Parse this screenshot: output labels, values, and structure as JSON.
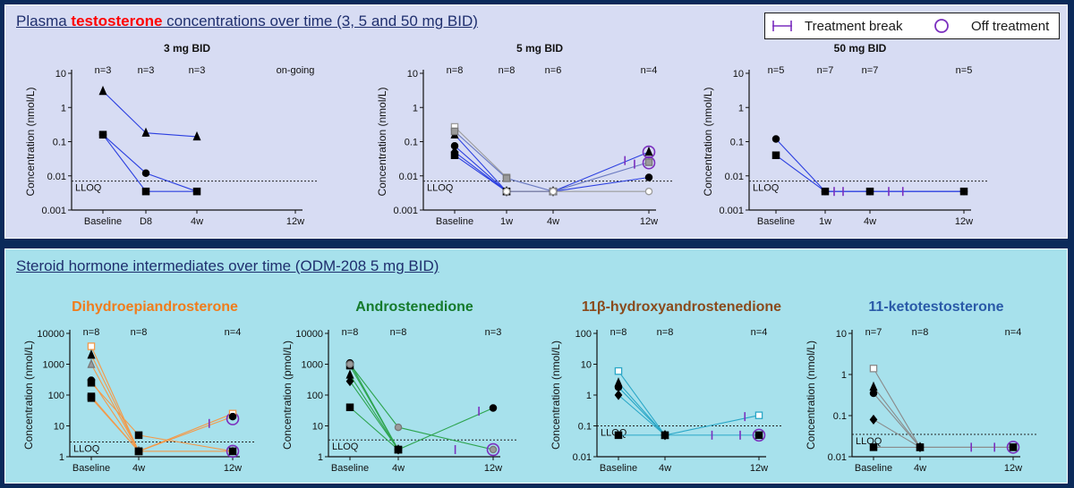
{
  "top_section": {
    "title_before": "Plasma ",
    "title_highlight": "testosterone",
    "title_after": " concentrations over time (3, 5 and 50 mg BID)"
  },
  "legend": {
    "treatment_break": "Treatment break",
    "off_treatment": "Off treatment",
    "break_color": "#7b2fbf",
    "off_color": "#7b2fbf"
  },
  "bottom_section": {
    "title": "Steroid hormone intermediates over time (ODM-208 5 mg BID)"
  },
  "chart_data": [
    {
      "id": "t3",
      "type": "line",
      "yscale": "log",
      "title": "3 mg BID",
      "title_color": "#111111",
      "title_style": "top",
      "ylabel": "Concentration (nmol/L)",
      "yticks": [
        0.001,
        0.01,
        0.1,
        1,
        10
      ],
      "ytick_labels": [
        "0.001",
        "0.01",
        "0.1",
        "1",
        "10"
      ],
      "categories": [
        "Baseline",
        "D8",
        "4w",
        "12w"
      ],
      "n_labels": [
        "n=3",
        "n=3",
        "n=3",
        "on-going"
      ],
      "lloq": 0.007,
      "lloq_label": "LLOQ",
      "series": [
        {
          "marker": "triangle",
          "color": "#2b3fe0",
          "fill": "#000000",
          "values": [
            3,
            0.18,
            0.14,
            null
          ]
        },
        {
          "marker": "circle",
          "color": "#2b3fe0",
          "fill": "#000000",
          "values": [
            0.16,
            0.012,
            null,
            null
          ]
        },
        {
          "marker": "square",
          "color": "#2b3fe0",
          "fill": "#000000",
          "values": [
            0.16,
            0.0035,
            0.0035,
            null
          ]
        }
      ],
      "segments": [
        {
          "from": [
            1,
            0.012
          ],
          "to": [
            2,
            0.0035
          ],
          "color": "#2b3fe0"
        }
      ],
      "breaks": [],
      "off": []
    },
    {
      "id": "t5",
      "type": "line",
      "yscale": "log",
      "title": "5 mg BID",
      "title_color": "#111111",
      "title_style": "top",
      "ylabel": "Concentration (nmol/L)",
      "yticks": [
        0.001,
        0.01,
        0.1,
        1,
        10
      ],
      "ytick_labels": [
        "0.001",
        "0.01",
        "0.1",
        "1",
        "10"
      ],
      "categories": [
        "Baseline",
        "1w",
        "4w",
        "12w"
      ],
      "n_labels": [
        "n=8",
        "n=8",
        "n=6",
        "n=4"
      ],
      "lloq": 0.007,
      "lloq_label": "LLOQ",
      "series": [
        {
          "marker": "square",
          "color": "#9b9b9b",
          "fill": "none",
          "values": [
            0.27,
            0.009,
            null,
            null
          ]
        },
        {
          "marker": "triangle",
          "color": "#2b3fe0",
          "fill": "#000000",
          "values": [
            0.16,
            0.0035,
            0.0035,
            0.05
          ]
        },
        {
          "marker": "circle",
          "color": "#2b3fe0",
          "fill": "#000000",
          "values": [
            0.075,
            0.0035,
            0.0035,
            0.009
          ]
        },
        {
          "marker": "diamond",
          "color": "#2b3fe0",
          "fill": "#000000",
          "values": [
            0.05,
            0.0035,
            0.0035,
            null
          ]
        },
        {
          "marker": "square",
          "color": "#2b3fe0",
          "fill": "#000000",
          "values": [
            0.04,
            0.0035,
            0.0035,
            null
          ]
        },
        {
          "marker": "square",
          "color": "#6a7ac0",
          "fill": "#9b9b9b",
          "values": [
            0.2,
            0.0085,
            0.0035,
            0.025
          ]
        },
        {
          "marker": "circle",
          "color": "#9b9b9b",
          "fill": "none",
          "values": [
            null,
            0.0035,
            0.0035,
            0.0035
          ]
        }
      ],
      "segments": [],
      "breaks": [
        [
          2.75,
          0.028
        ],
        [
          2.85,
          0.022
        ]
      ],
      "off": [
        [
          3,
          0.05
        ],
        [
          3,
          0.024
        ]
      ]
    },
    {
      "id": "t50",
      "type": "line",
      "yscale": "log",
      "title": "50 mg BID",
      "title_color": "#111111",
      "title_style": "top",
      "ylabel": "Concentration (nmol/L)",
      "yticks": [
        0.001,
        0.01,
        0.1,
        1,
        10
      ],
      "ytick_labels": [
        "0.001",
        "0.01",
        "0.1",
        "1",
        "10"
      ],
      "categories": [
        "Baseline",
        "1w",
        "4w",
        "12w"
      ],
      "n_labels": [
        "n=5",
        "n=7",
        "n=7",
        "n=5"
      ],
      "lloq": 0.007,
      "lloq_label": "LLOQ",
      "series": [
        {
          "marker": "circle",
          "color": "#2b3fe0",
          "fill": "#000000",
          "values": [
            0.12,
            0.0035,
            0.0035,
            0.0035
          ]
        },
        {
          "marker": "square",
          "color": "#2b3fe0",
          "fill": "#000000",
          "values": [
            0.04,
            0.0035,
            0.0035,
            0.0035
          ]
        }
      ],
      "segments": [],
      "breaks": [
        [
          1.2,
          0.0035
        ],
        [
          1.4,
          0.0035
        ],
        [
          2.2,
          0.0035
        ],
        [
          2.35,
          0.0035
        ]
      ],
      "off": []
    },
    {
      "id": "dhea",
      "type": "line",
      "yscale": "log",
      "title": "Dihydroepiandrosterone",
      "title_color": "#f07c1c",
      "title_style": "bottom",
      "ylabel": "Concentration (nmol/L)",
      "yticks": [
        1,
        10,
        100,
        1000,
        10000
      ],
      "ytick_labels": [
        "1",
        "10",
        "100",
        "1000",
        "10000"
      ],
      "categories": [
        "Baseline",
        "4w",
        "12w"
      ],
      "n_labels": [
        "n=8",
        "n=8",
        "n=4"
      ],
      "lloq": 3,
      "lloq_label": "LLOQ",
      "series": [
        {
          "marker": "square",
          "color": "#f39a4a",
          "fill": "none",
          "values": [
            3800,
            1.5,
            25
          ]
        },
        {
          "marker": "triangle",
          "color": "#f39a4a",
          "fill": "#000000",
          "values": [
            2000,
            1.5,
            null
          ]
        },
        {
          "marker": "triangle",
          "color": "#f39a4a",
          "fill": "#9b9b9b",
          "values": [
            1000,
            1.5,
            1.5
          ]
        },
        {
          "marker": "circle",
          "color": "#f39a4a",
          "fill": "#000000",
          "values": [
            300,
            1.5,
            20
          ]
        },
        {
          "marker": "square",
          "color": "#f39a4a",
          "fill": "#000000",
          "values": [
            250,
            5,
            1.5
          ]
        },
        {
          "marker": "square",
          "color": "#f39a4a",
          "fill": "#000000",
          "values": [
            90,
            1.5,
            null
          ]
        },
        {
          "marker": "square",
          "color": "#f39a4a",
          "fill": "#000000",
          "values": [
            80,
            1.5,
            null
          ]
        }
      ],
      "segments": [],
      "breaks": [
        [
          1.75,
          12
        ]
      ],
      "off": [
        [
          2,
          17
        ],
        [
          2,
          1.5
        ]
      ]
    },
    {
      "id": "andro",
      "type": "line",
      "yscale": "log",
      "title": "Androstenedione",
      "title_color": "#157a2b",
      "title_style": "bottom",
      "ylabel": "Concentration (pmol/L)",
      "yticks": [
        1,
        10,
        100,
        1000,
        10000
      ],
      "ytick_labels": [
        "1",
        "10",
        "100",
        "1000",
        "10000"
      ],
      "categories": [
        "Baseline",
        "4w",
        "12w"
      ],
      "n_labels": [
        "n=8",
        "n=8",
        "n=3"
      ],
      "lloq": 3.5,
      "lloq_label": "LLOQ",
      "series": [
        {
          "marker": "circle",
          "color": "#2da44e",
          "fill": "#000000",
          "values": [
            1100,
            1.7,
            38
          ]
        },
        {
          "marker": "square",
          "color": "#2da44e",
          "fill": "#000000",
          "values": [
            900,
            1.7,
            null
          ]
        },
        {
          "marker": "circle",
          "color": "#2da44e",
          "fill": "#9b9b9b",
          "values": [
            1000,
            9,
            1.7
          ]
        },
        {
          "marker": "triangle",
          "color": "#2da44e",
          "fill": "#000000",
          "values": [
            450,
            1.7,
            null
          ]
        },
        {
          "marker": "diamond",
          "color": "#2da44e",
          "fill": "#000000",
          "values": [
            280,
            1.7,
            null
          ]
        },
        {
          "marker": "square",
          "color": "#2da44e",
          "fill": "#000000",
          "values": [
            40,
            1.7,
            null
          ]
        }
      ],
      "segments": [],
      "breaks": [
        [
          1.6,
          1.7
        ],
        [
          1.85,
          30
        ]
      ],
      "off": [
        [
          2,
          1.7
        ]
      ]
    },
    {
      "id": "obhydroxy",
      "type": "line",
      "yscale": "log",
      "title": "11β-hydroxyandrostenedione",
      "title_color": "#8a4a1c",
      "title_style": "bottom",
      "ylabel": "Concentration (nmol/L)",
      "yticks": [
        0.01,
        0.1,
        1,
        10,
        100
      ],
      "ytick_labels": [
        "0.01",
        "0.1",
        "1",
        "10",
        "100"
      ],
      "categories": [
        "Baseline",
        "4w",
        "12w"
      ],
      "n_labels": [
        "n=8",
        "n=8",
        "n=4"
      ],
      "lloq": 0.1,
      "lloq_label": "LLOQ",
      "series": [
        {
          "marker": "square",
          "color": "#2aa7c7",
          "fill": "none",
          "values": [
            6,
            0.05,
            0.22
          ]
        },
        {
          "marker": "triangle",
          "color": "#2aa7c7",
          "fill": "#000000",
          "values": [
            2.5,
            0.05,
            null
          ]
        },
        {
          "marker": "circle",
          "color": "#2aa7c7",
          "fill": "#000000",
          "values": [
            1.8,
            0.05,
            null
          ]
        },
        {
          "marker": "diamond",
          "color": "#2aa7c7",
          "fill": "#000000",
          "values": [
            1.0,
            0.05,
            null
          ]
        },
        {
          "marker": "square",
          "color": "#2aa7c7",
          "fill": "#000000",
          "values": [
            0.05,
            0.05,
            0.05
          ]
        }
      ],
      "segments": [],
      "breaks": [
        [
          1.5,
          0.05
        ],
        [
          1.8,
          0.05
        ],
        [
          1.85,
          0.2
        ]
      ],
      "off": [
        [
          2,
          0.05
        ]
      ]
    },
    {
      "id": "keto",
      "type": "line",
      "yscale": "log",
      "title": "11-ketotestosterone",
      "title_color": "#2a5aa8",
      "title_style": "bottom",
      "ylabel": "Concentration (nmol/L)",
      "yticks": [
        0.01,
        0.1,
        1,
        10
      ],
      "ytick_labels": [
        "0.01",
        "0.1",
        "1",
        "10"
      ],
      "categories": [
        "Baseline",
        "4w",
        "12w"
      ],
      "n_labels": [
        "n=7",
        "n=8",
        "n=4"
      ],
      "lloq": 0.035,
      "lloq_label": "LLOQ",
      "series": [
        {
          "marker": "square",
          "color": "#8a8a8a",
          "fill": "none",
          "values": [
            1.4,
            0.017,
            0.017
          ]
        },
        {
          "marker": "triangle",
          "color": "#8a8a8a",
          "fill": "#000000",
          "values": [
            0.5,
            0.017,
            null
          ]
        },
        {
          "marker": "circle",
          "color": "#8a8a8a",
          "fill": "#000000",
          "values": [
            0.35,
            0.017,
            null
          ]
        },
        {
          "marker": "diamond",
          "color": "#8a8a8a",
          "fill": "#000000",
          "values": [
            0.08,
            0.017,
            null
          ]
        },
        {
          "marker": "square",
          "color": "#8a8a8a",
          "fill": "#000000",
          "values": [
            0.017,
            0.017,
            0.017
          ]
        }
      ],
      "segments": [],
      "breaks": [
        [
          1.55,
          0.017
        ],
        [
          1.8,
          0.017
        ]
      ],
      "off": [
        [
          2,
          0.017
        ]
      ]
    }
  ]
}
